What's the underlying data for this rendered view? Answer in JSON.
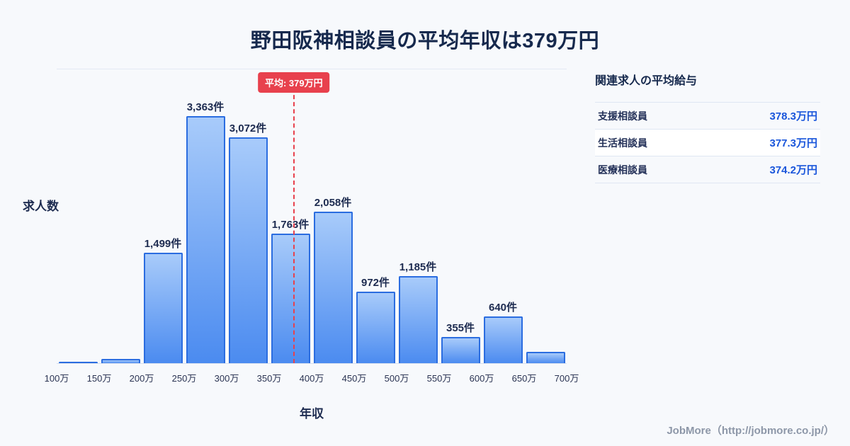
{
  "title": "野田阪神相談員の平均年収は379万円",
  "chart_data": {
    "type": "bar",
    "title": "野田阪神相談員の平均年収は379万円",
    "xlabel": "年収",
    "ylabel": "求人数",
    "ylim": [
      0,
      4000
    ],
    "x_range": [
      100,
      700
    ],
    "tick_labels": [
      "100万",
      "150万",
      "200万",
      "250万",
      "300万",
      "350万",
      "400万",
      "450万",
      "500万",
      "550万",
      "600万",
      "650万",
      "700万"
    ],
    "bins": [
      {
        "range": "100万-150万",
        "value": 20,
        "label": ""
      },
      {
        "range": "150万-200万",
        "value": 60,
        "label": ""
      },
      {
        "range": "200万-250万",
        "value": 1499,
        "label": "1,499件"
      },
      {
        "range": "250万-300万",
        "value": 3363,
        "label": "3,363件"
      },
      {
        "range": "300万-350万",
        "value": 3072,
        "label": "3,072件"
      },
      {
        "range": "350万-400万",
        "value": 1763,
        "label": "1,763件"
      },
      {
        "range": "400万-450万",
        "value": 2058,
        "label": "2,058件"
      },
      {
        "range": "450万-500万",
        "value": 972,
        "label": "972件"
      },
      {
        "range": "500万-550万",
        "value": 1185,
        "label": "1,185件"
      },
      {
        "range": "550万-600万",
        "value": 355,
        "label": "355件"
      },
      {
        "range": "600万-650万",
        "value": 640,
        "label": "640件"
      },
      {
        "range": "650万-700万",
        "value": 150,
        "label": ""
      }
    ],
    "average": {
      "value": 379,
      "label": "平均: 379万円"
    },
    "legend_position": "none",
    "grid": "minimal",
    "colors": {
      "bar_top": "#a8cbfa",
      "bar_bottom": "#4b8bf0",
      "bar_border": "#2b6de0",
      "average_line": "#e8414d"
    }
  },
  "side_panel": {
    "heading": "関連求人の平均給与",
    "rows": [
      {
        "label": "支援相談員",
        "value": "378.3万円"
      },
      {
        "label": "生活相談員",
        "value": "377.3万円"
      },
      {
        "label": "医療相談員",
        "value": "374.2万円"
      }
    ]
  },
  "footer": {
    "credit": "JobMore（http://jobmore.co.jp/）"
  }
}
